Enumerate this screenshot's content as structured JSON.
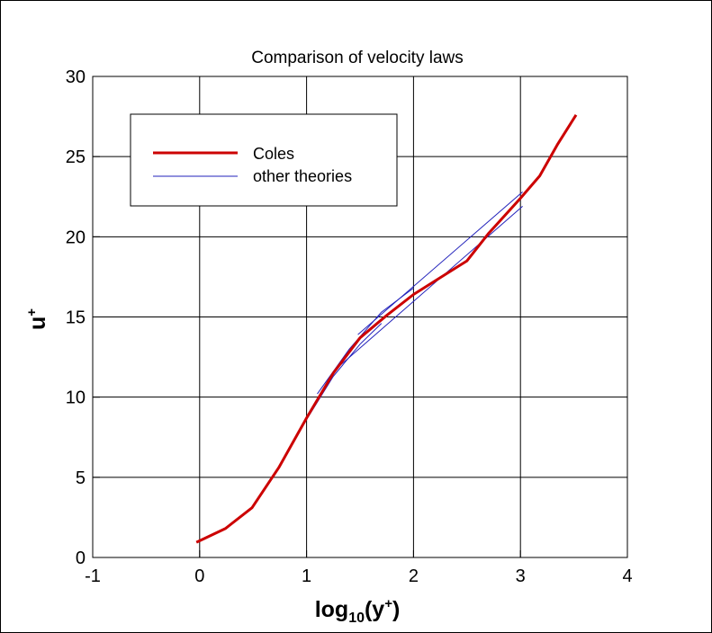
{
  "chart_data": {
    "type": "line",
    "title": "Comparison of velocity laws",
    "xlabel": "log10(y+)",
    "xlabel_parts": {
      "base": "log",
      "sub": "10",
      "open": "(y",
      "sup": "+",
      "close": ")"
    },
    "ylabel": "u+",
    "ylabel_parts": {
      "base": "u",
      "sup": "+"
    },
    "xlim": [
      -1,
      4
    ],
    "ylim": [
      0,
      30
    ],
    "xticks": [
      "-1",
      "0",
      "1",
      "2",
      "3",
      "4"
    ],
    "yticks": [
      "0",
      "5",
      "10",
      "15",
      "20",
      "25",
      "30"
    ],
    "grid": true,
    "legend_placement": "top-left",
    "legend": [
      {
        "label": "Coles",
        "color": "#cc0000"
      },
      {
        "label": "other theories",
        "color": "#2222bb"
      }
    ],
    "series": [
      {
        "name": "Coles",
        "color": "#cc0000",
        "x": [
          -0.03,
          0.24,
          0.49,
          0.74,
          1.0,
          1.25,
          1.5,
          1.75,
          2.0,
          2.5,
          2.7,
          3.0,
          3.18,
          3.35,
          3.52
        ],
        "y": [
          0.95,
          1.8,
          3.1,
          5.6,
          8.7,
          11.5,
          13.7,
          15.1,
          16.4,
          18.5,
          20.2,
          22.4,
          23.8,
          25.8,
          27.6
        ]
      },
      {
        "name": "other theories",
        "color": "#2222bb",
        "x": [
          -0.03,
          0.24,
          0.49,
          0.74,
          1.0,
          1.25,
          1.5,
          1.7
        ],
        "y": [
          0.95,
          1.8,
          3.1,
          5.6,
          8.6,
          11.3,
          13.3,
          14.6
        ]
      },
      {
        "name": "other theories",
        "color": "#2222bb",
        "x": [
          1.48,
          3.02
        ],
        "y": [
          13.9,
          22.8
        ]
      },
      {
        "name": "other theories",
        "color": "#2222bb",
        "x": [
          1.3,
          3.02
        ],
        "y": [
          11.9,
          21.9
        ]
      },
      {
        "name": "other theories",
        "color": "#2222bb",
        "x": [
          1.1,
          1.4,
          1.7,
          2.0
        ],
        "y": [
          10.2,
          13.0,
          15.3,
          16.8
        ]
      }
    ]
  }
}
